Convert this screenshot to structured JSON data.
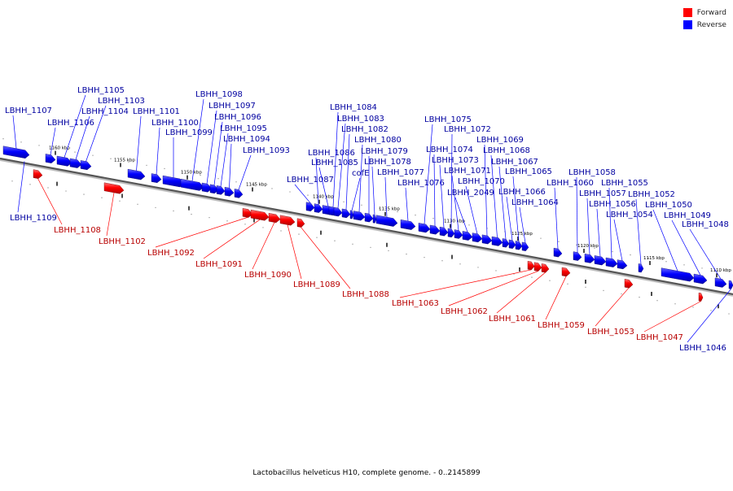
{
  "legend": {
    "items": [
      {
        "label": "Forward",
        "color": "#ff0000"
      },
      {
        "label": "Reverse",
        "color": "#0000ff"
      }
    ]
  },
  "caption": "Lactobacillus helveticus H10, complete genome. - 0..2145899",
  "colors": {
    "forward": "#ff0000",
    "reverse": "#0000ff",
    "label_forward": "#b80000",
    "label_reverse": "#0000a0"
  },
  "ticks": [
    "1160 kbp",
    "1155 kbp",
    "1150 kbp",
    "1145 kbp",
    "1140 kbp",
    "1135 kbp",
    "1130 kbp",
    "1125 kbp",
    "1120 kbp",
    "1115 kbp",
    "1110 kbp"
  ],
  "genes": [
    {
      "name": "LBHH_1107",
      "strand": "reverse"
    },
    {
      "name": "LBHH_1109",
      "strand": "reverse"
    },
    {
      "name": "LBHH_1108",
      "strand": "forward"
    },
    {
      "name": "LBHH_1106",
      "strand": "reverse"
    },
    {
      "name": "LBHH_1105",
      "strand": "reverse"
    },
    {
      "name": "LBHH_1104",
      "strand": "reverse"
    },
    {
      "name": "LBHH_1103",
      "strand": "reverse"
    },
    {
      "name": "LBHH_1102",
      "strand": "forward"
    },
    {
      "name": "LBHH_1101",
      "strand": "reverse"
    },
    {
      "name": "LBHH_1100",
      "strand": "reverse"
    },
    {
      "name": "LBHH_1099",
      "strand": "reverse"
    },
    {
      "name": "LBHH_1098",
      "strand": "reverse"
    },
    {
      "name": "LBHH_1097",
      "strand": "reverse"
    },
    {
      "name": "LBHH_1096",
      "strand": "reverse"
    },
    {
      "name": "LBHH_1095",
      "strand": "reverse"
    },
    {
      "name": "LBHH_1094",
      "strand": "reverse"
    },
    {
      "name": "LBHH_1093",
      "strand": "reverse"
    },
    {
      "name": "LBHH_1092",
      "strand": "forward"
    },
    {
      "name": "LBHH_1091",
      "strand": "forward"
    },
    {
      "name": "LBHH_1090",
      "strand": "forward"
    },
    {
      "name": "LBHH_1089",
      "strand": "forward"
    },
    {
      "name": "LBHH_1088",
      "strand": "forward"
    },
    {
      "name": "LBHH_1087",
      "strand": "reverse"
    },
    {
      "name": "LBHH_1086",
      "strand": "reverse"
    },
    {
      "name": "LBHH_1085",
      "strand": "reverse"
    },
    {
      "name": "LBHH_1084",
      "strand": "reverse"
    },
    {
      "name": "LBHH_1083",
      "strand": "reverse"
    },
    {
      "name": "LBHH_1082",
      "strand": "reverse"
    },
    {
      "name": "cofE",
      "strand": "reverse"
    },
    {
      "name": "LBHH_1080",
      "strand": "reverse"
    },
    {
      "name": "LBHH_1079",
      "strand": "reverse"
    },
    {
      "name": "LBHH_1078",
      "strand": "reverse"
    },
    {
      "name": "LBHH_1077",
      "strand": "reverse"
    },
    {
      "name": "LBHH_1076",
      "strand": "reverse"
    },
    {
      "name": "LBHH_1075",
      "strand": "reverse"
    },
    {
      "name": "LBHH_1074",
      "strand": "reverse"
    },
    {
      "name": "LBHH_1073",
      "strand": "reverse"
    },
    {
      "name": "LBHH_1072",
      "strand": "reverse"
    },
    {
      "name": "LBHH_1071",
      "strand": "reverse"
    },
    {
      "name": "LBHH_2049",
      "strand": "reverse"
    },
    {
      "name": "LBHH_1070",
      "strand": "reverse"
    },
    {
      "name": "LBHH_1069",
      "strand": "reverse"
    },
    {
      "name": "LBHH_1068",
      "strand": "reverse"
    },
    {
      "name": "LBHH_1067",
      "strand": "reverse"
    },
    {
      "name": "LBHH_1066",
      "strand": "reverse"
    },
    {
      "name": "LBHH_1065",
      "strand": "reverse"
    },
    {
      "name": "LBHH_1064",
      "strand": "reverse"
    },
    {
      "name": "LBHH_1063",
      "strand": "forward"
    },
    {
      "name": "LBHH_1062",
      "strand": "forward"
    },
    {
      "name": "LBHH_1061",
      "strand": "forward"
    },
    {
      "name": "LBHH_1060",
      "strand": "reverse"
    },
    {
      "name": "LBHH_1059",
      "strand": "forward"
    },
    {
      "name": "LBHH_1058",
      "strand": "reverse"
    },
    {
      "name": "LBHH_1057",
      "strand": "reverse"
    },
    {
      "name": "LBHH_1056",
      "strand": "reverse"
    },
    {
      "name": "LBHH_1055",
      "strand": "reverse"
    },
    {
      "name": "LBHH_1054",
      "strand": "reverse"
    },
    {
      "name": "LBHH_1053",
      "strand": "forward"
    },
    {
      "name": "LBHH_1052",
      "strand": "reverse"
    },
    {
      "name": "LBHH_1050",
      "strand": "reverse"
    },
    {
      "name": "LBHH_1049",
      "strand": "reverse"
    },
    {
      "name": "LBHH_1048",
      "strand": "reverse"
    },
    {
      "name": "LBHH_1047",
      "strand": "forward"
    },
    {
      "name": "LBHH_1046",
      "strand": "reverse"
    }
  ]
}
